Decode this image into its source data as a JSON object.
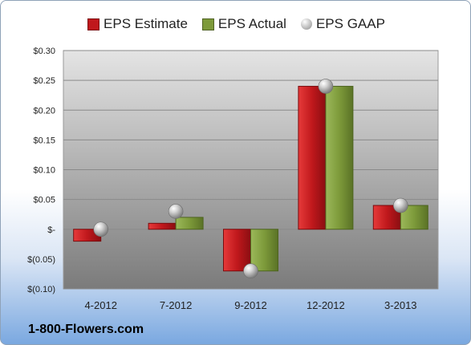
{
  "chart_data": {
    "type": "bar",
    "categories": [
      "4-2012",
      "7-2012",
      "9-2012",
      "12-2012",
      "3-2013"
    ],
    "series": [
      {
        "name": "EPS Estimate",
        "values": [
          -0.02,
          0.01,
          -0.07,
          0.24,
          0.04
        ],
        "color": "#c0181c"
      },
      {
        "name": "EPS Actual",
        "values": [
          null,
          0.02,
          -0.07,
          0.24,
          0.04
        ],
        "color": "#7d9a3a"
      },
      {
        "name": "EPS GAAP",
        "values": [
          0.0,
          0.03,
          -0.07,
          0.24,
          0.04
        ],
        "color": "#a8a8a8",
        "marker": "bubble"
      }
    ],
    "yticks": [
      {
        "value": 0.3,
        "label": "$0.30"
      },
      {
        "value": 0.25,
        "label": "$0.25"
      },
      {
        "value": 0.2,
        "label": "$0.20"
      },
      {
        "value": 0.15,
        "label": "$0.15"
      },
      {
        "value": 0.1,
        "label": "$0.10"
      },
      {
        "value": 0.05,
        "label": "$0.05"
      },
      {
        "value": 0.0,
        "label": "$-"
      },
      {
        "value": -0.05,
        "label": "$(0.05)"
      },
      {
        "value": -0.1,
        "label": "$(0.10)"
      }
    ],
    "ylim": [
      -0.1,
      0.3
    ],
    "grid": true,
    "legend_position": "top",
    "title": "",
    "xlabel": "",
    "ylabel": ""
  },
  "brand": "1-800-Flowers.com"
}
